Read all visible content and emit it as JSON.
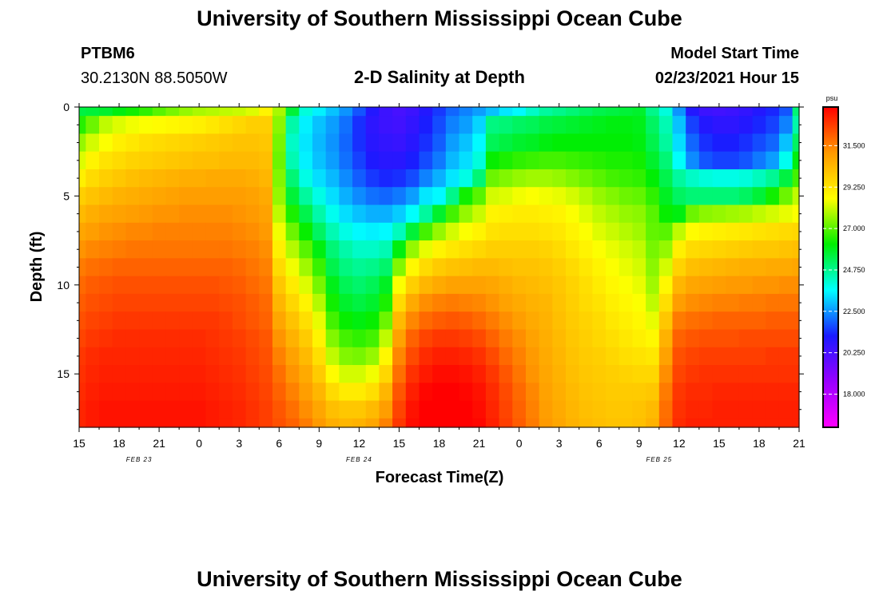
{
  "header": {
    "title": "University of Southern Mississippi Ocean Cube",
    "station_id": "PTBM6",
    "coordinates": "30.2130N 88.5050W",
    "plot_title": "2-D Salinity at Depth",
    "model_start_label": "Model Start Time",
    "model_start_value": "02/23/2021 Hour 15"
  },
  "footer": {
    "title": "University of Southern Mississippi Ocean Cube"
  },
  "chart_data": {
    "type": "heatmap",
    "title": "2-D Salinity at Depth",
    "xlabel": "Forecast Time(Z)",
    "ylabel": "Depth (ft)",
    "x_ticks": [
      "15",
      "18",
      "21",
      "0",
      "3",
      "6",
      "9",
      "12",
      "15",
      "18",
      "21",
      "0",
      "3",
      "6",
      "9",
      "12",
      "15",
      "18",
      "21"
    ],
    "x_range_hours": [
      0,
      54
    ],
    "date_labels": [
      {
        "text": "FEB 23",
        "hour": 4.5
      },
      {
        "text": "FEB 24",
        "hour": 21
      },
      {
        "text": "FEB 25",
        "hour": 43.5
      }
    ],
    "y_ticks": [
      0,
      5,
      10,
      15
    ],
    "ylim": [
      0,
      18
    ],
    "colorbar": {
      "unit": "psu",
      "tick_values": [
        18.0,
        20.25,
        22.5,
        24.75,
        27.0,
        29.25,
        31.5
      ],
      "tick_labels": [
        "18.000",
        "20.250",
        "22.500",
        "24.750",
        "27.000",
        "29.250",
        "31.500"
      ],
      "range": [
        16.2,
        33.6
      ],
      "palette": [
        "#ff00ff",
        "#9900ff",
        "#1a1aff",
        "#00ffff",
        "#00ee00",
        "#ffff00",
        "#ff9900",
        "#ff0000"
      ]
    },
    "profile_hours": [
      0,
      1,
      2,
      3,
      4,
      5,
      6,
      7,
      8,
      9,
      10,
      11,
      12,
      13,
      14,
      15,
      16,
      17,
      18,
      19,
      20,
      21,
      22,
      23,
      24,
      25,
      26,
      27,
      28,
      29,
      30,
      31,
      32,
      33,
      34,
      35,
      36,
      37,
      38,
      39,
      40,
      41,
      42,
      43,
      44,
      45,
      46,
      47,
      48,
      49,
      50,
      51,
      52,
      53,
      54
    ],
    "profile_depths_ft": [
      0,
      1,
      2,
      3,
      4,
      5,
      6,
      7,
      8,
      9,
      10,
      11,
      12,
      13,
      14,
      15,
      16,
      17,
      18
    ],
    "salinity_psu": [
      [
        25.5,
        25.6,
        25.7,
        26.0,
        26.3,
        26.6,
        27.0,
        27.3,
        27.6,
        27.8,
        27.9,
        28.0,
        28.1,
        28.3,
        28.9,
        27.8,
        25.6,
        24.0,
        23.5,
        23.0,
        22.5,
        21.8,
        21.0,
        20.5,
        20.3,
        20.5,
        21.0,
        21.5,
        22.0,
        22.3,
        22.6,
        23.0,
        23.4,
        23.6,
        24.2,
        24.6,
        24.8,
        25.0,
        25.2,
        25.4,
        25.5,
        25.6,
        25.7,
        24.8,
        24.0,
        22.5,
        21.0,
        20.5,
        20.4,
        20.5,
        20.7,
        21.0,
        21.3,
        21.8,
        25.0
      ],
      [
        26.5,
        27.2,
        28.0,
        28.3,
        28.5,
        28.6,
        28.7,
        28.8,
        28.9,
        29.0,
        29.2,
        29.4,
        29.6,
        29.8,
        29.8,
        27.5,
        24.5,
        23.5,
        23.0,
        22.6,
        22.1,
        21.4,
        20.8,
        20.5,
        20.4,
        20.7,
        21.2,
        21.7,
        22.3,
        22.6,
        23.2,
        24.9,
        25.0,
        25.2,
        25.3,
        25.5,
        25.6,
        25.7,
        25.8,
        25.9,
        26.0,
        26.0,
        25.9,
        25.2,
        24.4,
        23.0,
        21.6,
        21.0,
        20.8,
        20.8,
        21.0,
        21.3,
        21.6,
        22.3,
        24.5
      ],
      [
        27.6,
        28.2,
        28.6,
        29.0,
        29.2,
        29.4,
        29.5,
        29.6,
        29.7,
        29.8,
        29.9,
        30.0,
        30.1,
        30.1,
        30.0,
        27.3,
        24.2,
        23.4,
        22.9,
        22.5,
        22.0,
        21.4,
        20.9,
        20.7,
        20.6,
        20.9,
        21.4,
        21.9,
        22.6,
        23.0,
        23.6,
        25.3,
        25.5,
        25.7,
        25.8,
        26.0,
        26.1,
        26.1,
        26.1,
        26.1,
        26.1,
        26.1,
        26.0,
        25.4,
        24.6,
        23.3,
        22.0,
        21.4,
        21.2,
        21.2,
        21.4,
        21.7,
        22.0,
        23.0,
        25.2
      ],
      [
        28.3,
        28.9,
        29.3,
        29.5,
        29.7,
        29.8,
        29.9,
        30.0,
        30.1,
        30.2,
        30.2,
        30.3,
        30.3,
        30.3,
        30.2,
        27.2,
        24.4,
        23.5,
        23.0,
        22.6,
        22.1,
        21.6,
        21.1,
        20.9,
        20.9,
        21.2,
        21.7,
        22.2,
        22.9,
        23.3,
        24.0,
        26.2,
        26.4,
        26.6,
        26.7,
        26.8,
        26.8,
        26.7,
        26.6,
        26.5,
        26.4,
        26.4,
        26.3,
        25.7,
        25.0,
        23.7,
        22.4,
        21.8,
        21.6,
        21.6,
        21.8,
        22.2,
        22.6,
        23.8,
        26.0
      ],
      [
        29.0,
        29.5,
        29.8,
        30.0,
        30.2,
        30.3,
        30.4,
        30.5,
        30.6,
        30.6,
        30.7,
        30.7,
        30.7,
        30.6,
        30.4,
        27.4,
        25.0,
        23.9,
        23.3,
        22.9,
        22.4,
        21.9,
        21.5,
        21.3,
        21.4,
        21.7,
        22.3,
        22.8,
        23.4,
        23.9,
        25.0,
        27.2,
        27.4,
        27.6,
        27.7,
        27.7,
        27.6,
        27.4,
        27.2,
        27.0,
        26.8,
        26.7,
        26.6,
        26.1,
        25.4,
        24.6,
        24.2,
        24.0,
        23.9,
        23.9,
        24.0,
        24.3,
        24.7,
        25.5,
        26.8
      ],
      [
        29.8,
        30.1,
        30.3,
        30.5,
        30.6,
        30.7,
        30.8,
        30.9,
        31.0,
        31.0,
        31.0,
        31.0,
        31.0,
        30.9,
        30.7,
        27.6,
        25.6,
        24.6,
        23.9,
        23.3,
        22.8,
        22.4,
        22.1,
        22.0,
        22.2,
        22.6,
        23.4,
        23.6,
        24.8,
        26.3,
        27.0,
        28.2,
        28.3,
        28.5,
        28.6,
        28.5,
        28.4,
        28.2,
        27.9,
        27.6,
        27.4,
        27.2,
        27.1,
        26.6,
        25.8,
        25.2,
        25.0,
        25.0,
        25.0,
        25.0,
        25.2,
        25.6,
        26.3,
        27.2,
        28.0
      ],
      [
        30.3,
        30.6,
        30.8,
        30.9,
        31.0,
        31.1,
        31.2,
        31.2,
        31.3,
        31.3,
        31.3,
        31.3,
        31.2,
        31.1,
        30.9,
        28.0,
        26.4,
        25.4,
        24.5,
        23.8,
        23.3,
        23.0,
        22.8,
        22.8,
        23.1,
        23.7,
        24.6,
        25.7,
        26.8,
        27.6,
        28.1,
        28.9,
        29.0,
        29.1,
        29.1,
        29.0,
        28.9,
        28.6,
        28.3,
        28.0,
        27.8,
        27.6,
        27.5,
        27.0,
        26.2,
        26.0,
        27.2,
        27.5,
        27.6,
        27.7,
        27.8,
        28.0,
        28.2,
        28.4,
        28.6
      ],
      [
        30.8,
        31.0,
        31.2,
        31.3,
        31.4,
        31.4,
        31.5,
        31.5,
        31.5,
        31.5,
        31.5,
        31.5,
        31.4,
        31.3,
        31.1,
        28.5,
        27.2,
        26.2,
        25.2,
        24.4,
        23.9,
        23.6,
        23.5,
        23.6,
        24.3,
        25.6,
        26.8,
        27.6,
        28.2,
        28.6,
        28.9,
        29.3,
        29.4,
        29.4,
        29.4,
        29.3,
        29.2,
        28.9,
        28.6,
        28.3,
        28.1,
        27.9,
        27.7,
        27.1,
        27.0,
        28.0,
        28.7,
        28.9,
        29.0,
        29.1,
        29.2,
        29.3,
        29.4,
        29.5,
        29.6
      ],
      [
        31.2,
        31.4,
        31.5,
        31.6,
        31.7,
        31.7,
        31.7,
        31.7,
        31.7,
        31.7,
        31.7,
        31.7,
        31.6,
        31.5,
        31.3,
        29.0,
        27.9,
        27.0,
        26.0,
        25.0,
        24.5,
        24.2,
        24.2,
        24.4,
        26.0,
        27.6,
        28.4,
        28.9,
        29.2,
        29.4,
        29.6,
        29.8,
        29.8,
        29.8,
        29.8,
        29.7,
        29.5,
        29.2,
        28.9,
        28.6,
        28.4,
        28.2,
        28.0,
        27.3,
        27.6,
        29.0,
        29.5,
        29.6,
        29.7,
        29.8,
        29.9,
        30.0,
        30.0,
        30.1,
        30.2
      ],
      [
        31.6,
        31.8,
        31.9,
        32.0,
        32.0,
        32.0,
        32.0,
        32.0,
        32.0,
        32.0,
        32.0,
        32.0,
        31.9,
        31.7,
        31.5,
        29.5,
        28.5,
        27.7,
        26.7,
        25.4,
        24.9,
        24.7,
        24.8,
        25.1,
        27.4,
        28.8,
        29.5,
        29.9,
        30.1,
        30.2,
        30.3,
        30.3,
        30.2,
        30.1,
        30.1,
        30.0,
        29.8,
        29.5,
        29.2,
        28.9,
        28.6,
        28.4,
        28.2,
        27.5,
        28.2,
        29.7,
        30.2,
        30.3,
        30.4,
        30.5,
        30.6,
        30.6,
        30.7,
        30.7,
        30.8
      ],
      [
        31.9,
        32.1,
        32.2,
        32.3,
        32.3,
        32.3,
        32.3,
        32.3,
        32.3,
        32.3,
        32.3,
        32.2,
        32.1,
        31.9,
        31.7,
        30.0,
        29.1,
        28.3,
        27.3,
        25.9,
        25.3,
        25.1,
        25.3,
        25.8,
        28.6,
        29.8,
        30.4,
        30.7,
        30.9,
        30.9,
        30.9,
        30.8,
        30.6,
        30.4,
        30.3,
        30.2,
        30.0,
        29.7,
        29.4,
        29.1,
        28.8,
        28.6,
        28.4,
        27.7,
        28.8,
        30.4,
        30.8,
        30.9,
        31.0,
        31.1,
        31.1,
        31.2,
        31.2,
        31.3,
        31.3
      ],
      [
        32.1,
        32.3,
        32.4,
        32.5,
        32.5,
        32.5,
        32.5,
        32.5,
        32.5,
        32.5,
        32.5,
        32.4,
        32.3,
        32.1,
        31.9,
        30.4,
        29.6,
        28.9,
        27.9,
        26.3,
        25.7,
        25.5,
        25.7,
        26.4,
        29.5,
        30.7,
        31.3,
        31.5,
        31.6,
        31.5,
        31.4,
        31.2,
        30.9,
        30.7,
        30.5,
        30.4,
        30.1,
        29.8,
        29.5,
        29.3,
        29.0,
        28.8,
        28.6,
        28.0,
        29.4,
        31.0,
        31.3,
        31.4,
        31.5,
        31.5,
        31.6,
        31.6,
        31.7,
        31.7,
        31.7
      ],
      [
        32.3,
        32.5,
        32.6,
        32.7,
        32.7,
        32.7,
        32.7,
        32.7,
        32.7,
        32.7,
        32.7,
        32.6,
        32.4,
        32.2,
        32.0,
        30.8,
        30.1,
        29.4,
        28.4,
        26.8,
        26.2,
        26.0,
        26.2,
        27.2,
        30.3,
        31.4,
        31.9,
        32.1,
        32.2,
        32.1,
        31.9,
        31.6,
        31.3,
        31.0,
        30.7,
        30.5,
        30.2,
        29.9,
        29.7,
        29.5,
        29.2,
        29.0,
        28.8,
        28.4,
        30.0,
        31.6,
        31.8,
        31.9,
        32.0,
        32.0,
        32.0,
        32.0,
        32.1,
        32.1,
        32.1
      ],
      [
        32.5,
        32.7,
        32.8,
        32.9,
        32.9,
        32.9,
        32.9,
        32.9,
        32.9,
        32.9,
        32.8,
        32.7,
        32.6,
        32.4,
        32.2,
        31.2,
        30.5,
        29.9,
        28.9,
        27.4,
        26.8,
        26.6,
        26.8,
        28.0,
        30.9,
        32.0,
        32.5,
        32.7,
        32.7,
        32.6,
        32.4,
        32.0,
        31.6,
        31.3,
        30.9,
        30.6,
        30.3,
        30.0,
        29.8,
        29.6,
        29.4,
        29.2,
        29.0,
        28.8,
        30.5,
        32.0,
        32.2,
        32.3,
        32.3,
        32.3,
        32.4,
        32.4,
        32.4,
        32.4,
        32.4
      ],
      [
        32.7,
        32.9,
        33.0,
        33.0,
        33.0,
        33.0,
        33.0,
        33.0,
        33.0,
        33.0,
        32.9,
        32.8,
        32.7,
        32.5,
        32.3,
        31.5,
        30.9,
        30.3,
        29.4,
        28.0,
        27.4,
        27.3,
        27.6,
        28.8,
        31.4,
        32.4,
        32.9,
        33.1,
        33.1,
        33.0,
        32.8,
        32.4,
        31.9,
        31.5,
        31.1,
        30.7,
        30.4,
        30.1,
        29.9,
        29.8,
        29.6,
        29.4,
        29.3,
        29.2,
        30.9,
        32.3,
        32.5,
        32.6,
        32.6,
        32.6,
        32.6,
        32.6,
        32.7,
        32.7,
        32.7
      ],
      [
        32.8,
        33.0,
        33.1,
        33.1,
        33.1,
        33.1,
        33.1,
        33.1,
        33.1,
        33.1,
        33.0,
        32.9,
        32.8,
        32.6,
        32.4,
        31.8,
        31.2,
        30.7,
        29.9,
        28.7,
        28.2,
        28.2,
        28.5,
        29.6,
        31.8,
        32.8,
        33.2,
        33.4,
        33.4,
        33.3,
        33.1,
        32.7,
        32.2,
        31.7,
        31.2,
        30.8,
        30.5,
        30.2,
        30.0,
        29.9,
        29.8,
        29.7,
        29.6,
        29.6,
        31.3,
        32.5,
        32.7,
        32.8,
        32.8,
        32.8,
        32.8,
        32.8,
        32.8,
        32.8,
        32.8
      ],
      [
        32.9,
        33.1,
        33.2,
        33.2,
        33.2,
        33.2,
        33.2,
        33.2,
        33.2,
        33.2,
        33.1,
        33.0,
        32.9,
        32.7,
        32.5,
        32.0,
        31.5,
        31.0,
        30.4,
        29.5,
        29.1,
        29.1,
        29.4,
        30.4,
        32.2,
        33.1,
        33.5,
        33.6,
        33.6,
        33.5,
        33.3,
        32.9,
        32.4,
        31.9,
        31.4,
        30.9,
        30.6,
        30.3,
        30.1,
        30.0,
        29.9,
        29.9,
        29.9,
        30.0,
        31.6,
        32.7,
        32.9,
        32.9,
        33.0,
        33.0,
        33.0,
        33.0,
        33.0,
        33.0,
        33.0
      ],
      [
        33.0,
        33.2,
        33.3,
        33.3,
        33.3,
        33.3,
        33.3,
        33.3,
        33.3,
        33.3,
        33.2,
        33.1,
        33.0,
        32.8,
        32.6,
        32.2,
        31.8,
        31.3,
        30.8,
        30.2,
        30.0,
        30.0,
        30.3,
        31.0,
        32.5,
        33.3,
        33.7,
        33.8,
        33.8,
        33.7,
        33.4,
        33.0,
        32.5,
        32.0,
        31.5,
        31.0,
        30.7,
        30.4,
        30.2,
        30.1,
        30.0,
        30.0,
        30.1,
        30.3,
        31.8,
        32.8,
        33.0,
        33.0,
        33.1,
        33.1,
        33.1,
        33.1,
        33.1,
        33.1,
        33.1
      ],
      [
        33.0,
        33.2,
        33.3,
        33.3,
        33.3,
        33.3,
        33.3,
        33.3,
        33.3,
        33.3,
        33.2,
        33.1,
        33.0,
        32.8,
        32.6,
        32.3,
        32.0,
        31.6,
        31.1,
        30.6,
        30.4,
        30.5,
        30.8,
        31.5,
        32.7,
        33.4,
        33.8,
        33.9,
        33.9,
        33.8,
        33.5,
        33.1,
        32.6,
        32.1,
        31.6,
        31.1,
        30.8,
        30.5,
        30.3,
        30.2,
        30.1,
        30.1,
        30.2,
        30.5,
        31.9,
        32.9,
        33.1,
        33.1,
        33.1,
        33.1,
        33.1,
        33.1,
        33.1,
        33.1,
        33.1
      ]
    ]
  }
}
